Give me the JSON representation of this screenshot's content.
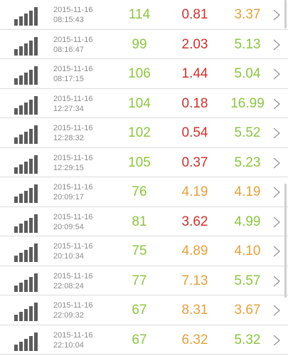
{
  "colors": {
    "green": "#8cc63f",
    "red": "#d0312d",
    "orange": "#e8a03a",
    "signal": "#5c5c5c",
    "muted": "#8c8c8c"
  },
  "icons": {
    "signal": "signal-strength-icon",
    "chevron": "chevron-right-icon"
  },
  "rows": [
    {
      "date": "2015-11-16",
      "time": "08:15:43",
      "v1": "114",
      "v2": "0.81",
      "v3": "3.37",
      "c1": "green",
      "c2": "red",
      "c3": "orange"
    },
    {
      "date": "2015-11-16",
      "time": "08:16:47",
      "v1": "99",
      "v2": "2.03",
      "v3": "5.13",
      "c1": "green",
      "c2": "red",
      "c3": "green"
    },
    {
      "date": "2015-11-16",
      "time": "08:17:15",
      "v1": "106",
      "v2": "1.44",
      "v3": "5.04",
      "c1": "green",
      "c2": "red",
      "c3": "green"
    },
    {
      "date": "2015-11-16",
      "time": "12:27:34",
      "v1": "104",
      "v2": "0.18",
      "v3": "16.99",
      "c1": "green",
      "c2": "red",
      "c3": "green"
    },
    {
      "date": "2015-11-16",
      "time": "12:28:32",
      "v1": "102",
      "v2": "0.54",
      "v3": "5.52",
      "c1": "green",
      "c2": "red",
      "c3": "green"
    },
    {
      "date": "2015-11-16",
      "time": "12:29:15",
      "v1": "105",
      "v2": "0.37",
      "v3": "5.23",
      "c1": "green",
      "c2": "red",
      "c3": "green"
    },
    {
      "date": "2015-11-16",
      "time": "20:09:17",
      "v1": "76",
      "v2": "4.19",
      "v3": "4.19",
      "c1": "green",
      "c2": "orange",
      "c3": "orange"
    },
    {
      "date": "2015-11-16",
      "time": "20:09:54",
      "v1": "81",
      "v2": "3.62",
      "v3": "4.99",
      "c1": "green",
      "c2": "red",
      "c3": "green"
    },
    {
      "date": "2015-11-16",
      "time": "20:10:34",
      "v1": "75",
      "v2": "4.89",
      "v3": "4.10",
      "c1": "green",
      "c2": "orange",
      "c3": "orange"
    },
    {
      "date": "2015-11-16",
      "time": "22:08:24",
      "v1": "77",
      "v2": "7.13",
      "v3": "5.57",
      "c1": "green",
      "c2": "orange",
      "c3": "green"
    },
    {
      "date": "2015-11-16",
      "time": "22:09:32",
      "v1": "67",
      "v2": "8.31",
      "v3": "3.67",
      "c1": "green",
      "c2": "orange",
      "c3": "orange"
    },
    {
      "date": "2015-11-16",
      "time": "22:10:04",
      "v1": "67",
      "v2": "6.32",
      "v3": "5.32",
      "c1": "green",
      "c2": "orange",
      "c3": "green"
    }
  ]
}
